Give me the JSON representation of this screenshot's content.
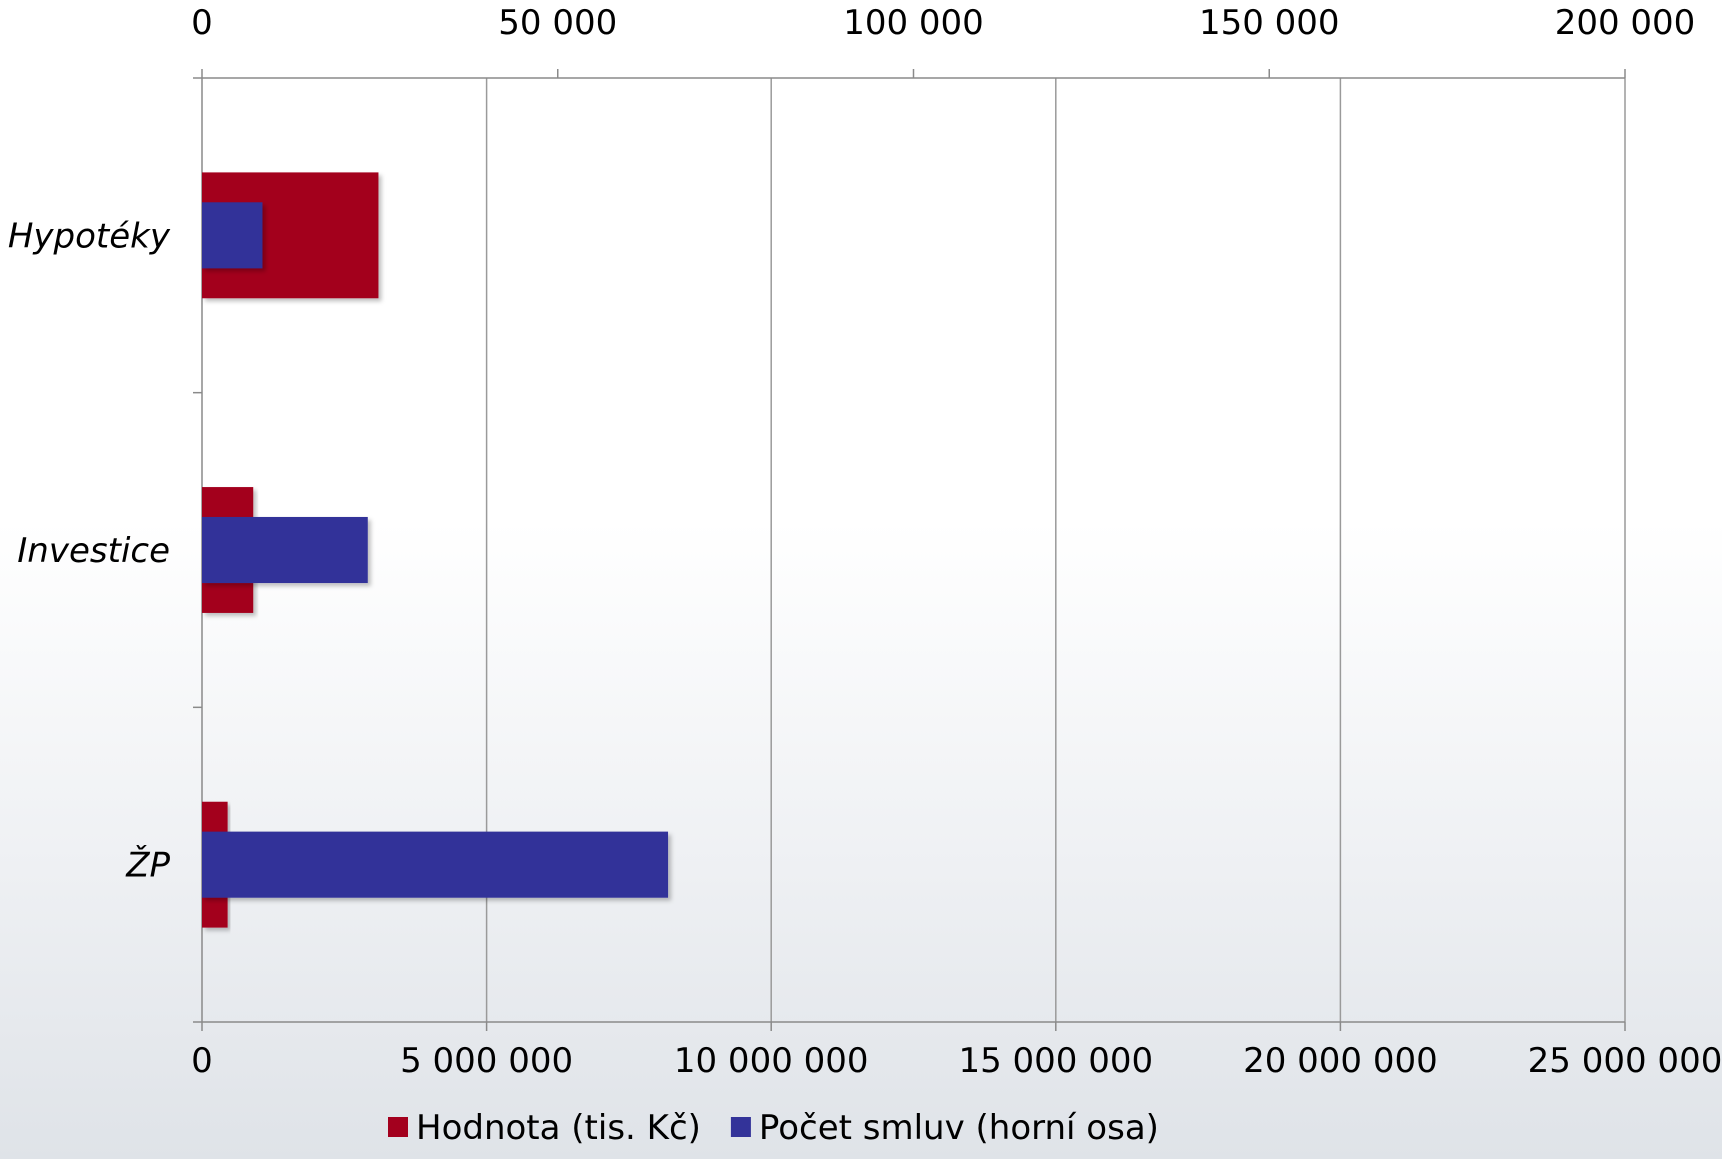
{
  "chart_data": {
    "type": "bar",
    "orientation": "horizontal",
    "categories": [
      "Hypotéky",
      "Investice",
      "ŽP"
    ],
    "series": [
      {
        "name": "Hodnota (tis. Kč)",
        "axis": "bottom",
        "color": "#a3001e",
        "values": [
          3100000,
          900000,
          450000
        ]
      },
      {
        "name": "Počet smluv (horní osa)",
        "axis": "top",
        "color": "#333399",
        "values": [
          8500,
          23300,
          65500
        ]
      }
    ],
    "bottom_axis": {
      "range": [
        0,
        25000000
      ],
      "ticks": [
        "0",
        "5 000 000",
        "10 000 000",
        "15 000 000",
        "20 000 000",
        "25 000 000"
      ]
    },
    "top_axis": {
      "range": [
        0,
        200000
      ],
      "ticks": [
        "0",
        "50 000",
        "100 000",
        "150 000",
        "200 000"
      ]
    },
    "grid": true,
    "legend_position": "bottom"
  }
}
